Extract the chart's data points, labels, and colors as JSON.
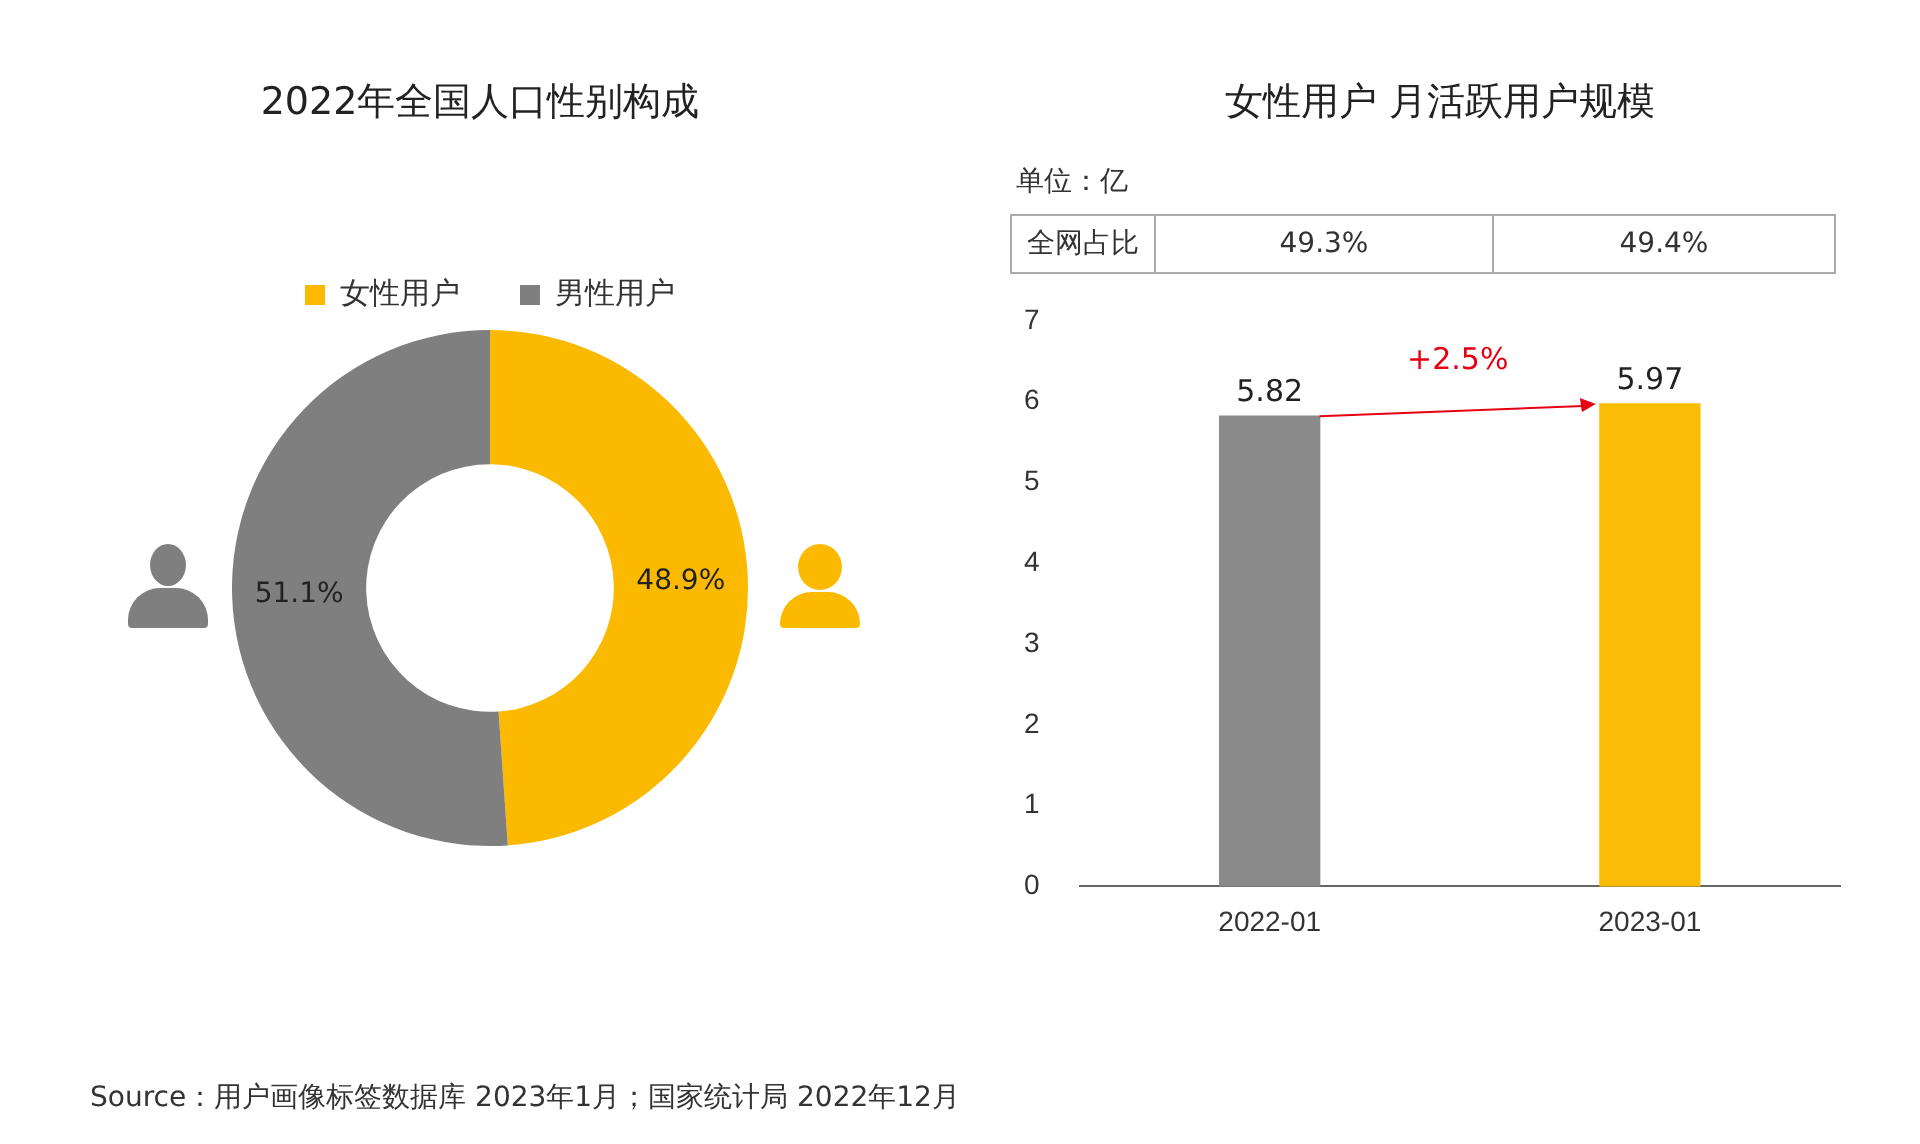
{
  "chart_data": [
    {
      "type": "donut",
      "title": "2022年全国人口性别构成",
      "categories": [
        "女性用户",
        "男性用户"
      ],
      "values": [
        48.9,
        51.1
      ],
      "colors": [
        "#fbb900",
        "#7f7f7f"
      ],
      "value_labels": [
        "48.9%",
        "51.1%"
      ],
      "legend": "top",
      "annotations": [
        "Source：用户画像标签数据库 2023年1月；国家统计局 2022年12月"
      ]
    },
    {
      "type": "bar",
      "title": "女性用户 月活跃用户规模",
      "categories": [
        "2022-01",
        "2023-01"
      ],
      "values": [
        5.82,
        5.97
      ],
      "colors": [
        "#8a8a8a",
        "#fbbc05"
      ],
      "ylim": [
        0,
        7
      ],
      "yticks": [
        0,
        1,
        2,
        3,
        4,
        5,
        6,
        7
      ],
      "grid": false,
      "legend": false,
      "data_labels": true,
      "annotations": [
        "单位：亿",
        "全网占比",
        "49.3%",
        "49.4%",
        "+2.5%"
      ]
    }
  ]
}
